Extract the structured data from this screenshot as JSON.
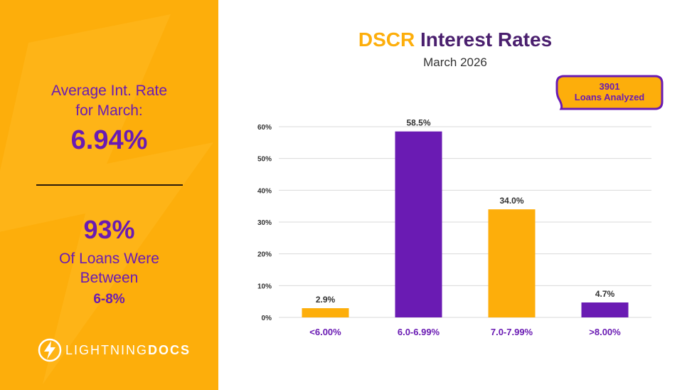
{
  "sidebar": {
    "avg_label_line1": "Average Int. Rate",
    "avg_label_line2": "for March:",
    "avg_value": "6.94%",
    "pct_value": "93%",
    "loans_line1": "Of Loans Were",
    "loans_line2": "Between",
    "range": "6-8%",
    "brand_light": "LIGHTNING",
    "brand_bold": "DOCS"
  },
  "header": {
    "title_accent": "DSCR",
    "title_rest": " Interest Rates",
    "subtitle": "March 2026"
  },
  "callout": {
    "line1": "3901",
    "line2": "Loans Analyzed"
  },
  "colors": {
    "orange": "#FDAE0B",
    "purple": "#6A1BB3",
    "title_purple": "#4A1F6E"
  },
  "chart_data": {
    "type": "bar",
    "title": "DSCR Interest Rates",
    "subtitle": "March 2026",
    "categories": [
      "<6.00%",
      "6.0-6.99%",
      "7.0-7.99%",
      ">8.00%"
    ],
    "values": [
      2.9,
      58.5,
      34.0,
      4.7
    ],
    "labels": [
      "2.9%",
      "58.5%",
      "34.0%",
      "4.7%"
    ],
    "bar_colors": [
      "#FDAE0B",
      "#6A1BB3",
      "#FDAE0B",
      "#6A1BB3"
    ],
    "ylim": [
      0,
      60
    ],
    "yticks": [
      0,
      10,
      20,
      30,
      40,
      50,
      60
    ],
    "ytick_labels": [
      "0%",
      "10%",
      "20%",
      "30%",
      "40%",
      "50%",
      "60%"
    ],
    "xlabel": "",
    "ylabel": "",
    "grid": true
  }
}
